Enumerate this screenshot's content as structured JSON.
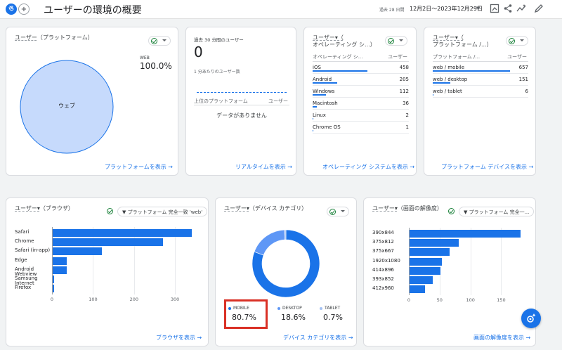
{
  "header": {
    "title": "ユーザーの環境の概要",
    "range_label": "過去 28 日間",
    "range_value": "12月2日～2023年12月29日"
  },
  "platform_card": {
    "title_metric": "ユーザー",
    "title_dim": "（プラットフォーム）",
    "legend_label": "WEB",
    "legend_value": "100.0%",
    "slice_label": "ウェブ",
    "link": "プラットフォームを表示 →"
  },
  "realtime_card": {
    "title": "過去 30 分間のユーザー",
    "value": "0",
    "subtitle": "1 分あたりのユーザー数",
    "col_dim": "上位のプラットフォーム",
    "col_metric": "ユーザー",
    "empty": "データがありません",
    "link": "リアルタイムを表示 →"
  },
  "os_card": {
    "title_metric": "ユーザー▾（",
    "title_dim": "オペレーティング シ...）",
    "col_dim": "オペレーティング シ...",
    "col_metric": "ユーザー",
    "rows": [
      {
        "name": "iOS",
        "value": "458",
        "fraction": 1.0
      },
      {
        "name": "Android",
        "value": "205",
        "fraction": 0.45
      },
      {
        "name": "Windows",
        "value": "112",
        "fraction": 0.24
      },
      {
        "name": "Macintosh",
        "value": "36",
        "fraction": 0.08
      },
      {
        "name": "Linux",
        "value": "2",
        "fraction": 0.01
      },
      {
        "name": "Chrome OS",
        "value": "1",
        "fraction": 0.005
      }
    ],
    "link": "オペレーティング システムを表示 →"
  },
  "device_card": {
    "title_metric": "ユーザー▾（",
    "title_dim": "プラットフォーム /...）",
    "col_dim": "プラットフォーム /...",
    "col_metric": "ユーザー",
    "rows": [
      {
        "name": "web / mobile",
        "value": "657",
        "fraction": 1.0
      },
      {
        "name": "web / desktop",
        "value": "151",
        "fraction": 0.23
      },
      {
        "name": "web / tablet",
        "value": "6",
        "fraction": 0.01
      }
    ],
    "link": "プラットフォーム デバイスを表示 →"
  },
  "browser_card": {
    "title_metric": "ユーザー▾",
    "title_dim": "（ブラウザ）",
    "filter": "プラットフォーム 完全一致 'web'",
    "link": "ブラウザを表示 →"
  },
  "category_card": {
    "title_metric": "ユーザー▾",
    "title_dim": "（デバイス カテゴリ）",
    "legend": [
      {
        "label": "MOBILE",
        "value": "80.7%",
        "color": "#1a73e8"
      },
      {
        "label": "DESKTOP",
        "value": "18.6%",
        "color": "#5e97f6"
      },
      {
        "label": "TABLET",
        "value": "0.7%",
        "color": "#a4c2f4"
      }
    ],
    "link": "デバイス カテゴリを表示 →"
  },
  "resolution_card": {
    "title_metric": "ユーザー▾",
    "title_dim": "（画面の解像度）",
    "filter": "プラットフォーム 完全一...",
    "link": "画面の解像度を表示 →"
  },
  "chart_data": [
    {
      "type": "pie",
      "categories": [
        "ウェブ"
      ],
      "values": [
        100.0
      ]
    },
    {
      "type": "bar",
      "orientation": "horizontal",
      "categories": [
        "Safari",
        "Chrome",
        "Safari (in-app)",
        "Edge",
        "Android Webview",
        "Samsung Internet",
        "Firefox"
      ],
      "values": [
        340,
        270,
        120,
        35,
        35,
        4,
        3
      ],
      "xlim": [
        0,
        350
      ],
      "xticks": [
        "0",
        "100",
        "200",
        "300"
      ]
    },
    {
      "type": "pie",
      "style": "donut",
      "categories": [
        "MOBILE",
        "DESKTOP",
        "TABLET"
      ],
      "values": [
        80.7,
        18.6,
        0.7
      ]
    },
    {
      "type": "bar",
      "orientation": "horizontal",
      "categories": [
        "390x844",
        "375x812",
        "375x667",
        "1920x1080",
        "414x896",
        "393x852",
        "412x960"
      ],
      "values": [
        180,
        80,
        65,
        52,
        50,
        38,
        25
      ],
      "xlim": [
        0,
        200
      ],
      "xticks": [
        "0",
        "50",
        "100",
        "150"
      ]
    }
  ]
}
